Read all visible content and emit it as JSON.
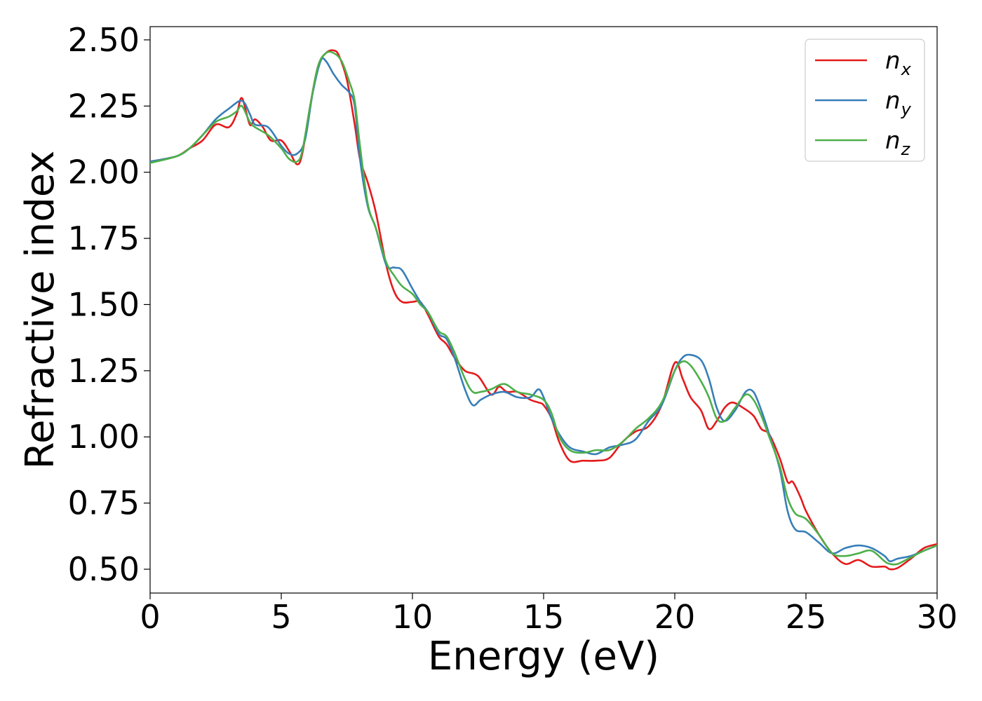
{
  "chart_data": {
    "type": "line",
    "title": "",
    "xlabel": "Energy (eV)",
    "ylabel": "Refractive index",
    "xlim": [
      0,
      30
    ],
    "ylim": [
      0.41,
      2.55
    ],
    "xticks": [
      0,
      5,
      10,
      15,
      20,
      25,
      30
    ],
    "xtick_labels": [
      "0",
      "5",
      "10",
      "15",
      "20",
      "25",
      "30"
    ],
    "yticks": [
      0.5,
      0.75,
      1.0,
      1.25,
      1.5,
      1.75,
      2.0,
      2.25,
      2.5
    ],
    "ytick_labels": [
      "0.50",
      "0.75",
      "1.00",
      "1.25",
      "1.50",
      "1.75",
      "2.00",
      "2.25",
      "2.50"
    ],
    "grid": false,
    "legend_position": "top-right",
    "series": [
      {
        "name": "n",
        "subscript": "x",
        "color": "#e41a1c",
        "x": [
          0,
          1,
          1.5,
          2,
          2.5,
          3,
          3.3,
          3.5,
          3.8,
          4,
          4.3,
          4.6,
          5,
          5.3,
          5.6,
          5.8,
          6.1,
          6.4,
          6.7,
          7,
          7.2,
          7.5,
          7.8,
          8,
          8.3,
          8.6,
          9,
          9.3,
          9.6,
          10,
          10.3,
          10.6,
          11,
          11.3,
          11.6,
          12,
          12.5,
          13,
          13.3,
          13.6,
          14,
          14.5,
          14.8,
          15,
          15.3,
          15.6,
          16,
          16.5,
          17,
          17.5,
          18,
          18.5,
          19,
          19.5,
          20,
          20.3,
          20.6,
          21,
          21.3,
          21.6,
          21.9,
          22.2,
          22.6,
          23,
          23.3,
          23.6,
          24,
          24.3,
          24.5,
          24.8,
          25,
          25.5,
          26,
          26.5,
          27,
          27.5,
          28,
          28.2,
          28.5,
          29,
          29.5,
          30
        ],
        "y": [
          2.04,
          2.06,
          2.09,
          2.12,
          2.18,
          2.17,
          2.22,
          2.28,
          2.18,
          2.2,
          2.17,
          2.12,
          2.12,
          2.08,
          2.03,
          2.07,
          2.25,
          2.4,
          2.45,
          2.46,
          2.44,
          2.35,
          2.18,
          2.05,
          1.96,
          1.85,
          1.65,
          1.55,
          1.51,
          1.51,
          1.51,
          1.46,
          1.38,
          1.35,
          1.3,
          1.25,
          1.23,
          1.16,
          1.19,
          1.17,
          1.17,
          1.14,
          1.13,
          1.12,
          1.07,
          0.98,
          0.91,
          0.91,
          0.91,
          0.92,
          0.98,
          1.02,
          1.04,
          1.12,
          1.28,
          1.22,
          1.15,
          1.1,
          1.03,
          1.06,
          1.11,
          1.13,
          1.11,
          1.08,
          1.03,
          1.01,
          0.92,
          0.83,
          0.83,
          0.77,
          0.72,
          0.63,
          0.56,
          0.52,
          0.535,
          0.51,
          0.51,
          0.5,
          0.505,
          0.54,
          0.58,
          0.595
        ]
      },
      {
        "name": "n",
        "subscript": "y",
        "color": "#377eb8",
        "x": [
          0,
          1,
          1.5,
          2,
          2.5,
          3,
          3.5,
          3.8,
          4,
          4.5,
          5,
          5.3,
          5.6,
          5.9,
          6.2,
          6.5,
          6.7,
          7,
          7.3,
          7.6,
          7.8,
          8,
          8.3,
          8.6,
          9,
          9.3,
          9.6,
          10,
          10.3,
          10.6,
          11,
          11.3,
          11.6,
          12,
          12.3,
          12.6,
          13,
          13.5,
          14,
          14.5,
          14.8,
          15,
          15.3,
          15.6,
          16,
          16.5,
          17,
          17.5,
          18,
          18.5,
          19,
          19.5,
          20,
          20.3,
          20.6,
          21,
          21.3,
          21.6,
          21.9,
          22.3,
          22.7,
          23,
          23.3,
          23.6,
          24,
          24.3,
          24.6,
          25,
          25.5,
          26,
          26.5,
          27,
          27.5,
          28,
          28.2,
          28.5,
          29,
          29.5,
          30
        ],
        "y": [
          2.04,
          2.06,
          2.09,
          2.14,
          2.2,
          2.24,
          2.27,
          2.22,
          2.18,
          2.17,
          2.1,
          2.07,
          2.07,
          2.12,
          2.3,
          2.42,
          2.42,
          2.37,
          2.33,
          2.3,
          2.25,
          2.05,
          1.87,
          1.79,
          1.65,
          1.64,
          1.63,
          1.56,
          1.51,
          1.47,
          1.39,
          1.37,
          1.3,
          1.18,
          1.12,
          1.14,
          1.16,
          1.17,
          1.15,
          1.15,
          1.18,
          1.15,
          1.07,
          1.01,
          0.96,
          0.945,
          0.935,
          0.96,
          0.97,
          0.99,
          1.06,
          1.12,
          1.25,
          1.3,
          1.31,
          1.29,
          1.22,
          1.11,
          1.06,
          1.1,
          1.17,
          1.17,
          1.1,
          1.01,
          0.88,
          0.72,
          0.65,
          0.64,
          0.6,
          0.56,
          0.58,
          0.59,
          0.58,
          0.55,
          0.53,
          0.54,
          0.55,
          0.57,
          0.59
        ]
      },
      {
        "name": "n",
        "subscript": "z",
        "color": "#4daf4a",
        "x": [
          0,
          1,
          1.5,
          2,
          2.5,
          3,
          3.3,
          3.5,
          3.8,
          4,
          4.5,
          5,
          5.3,
          5.6,
          5.8,
          6.1,
          6.4,
          6.7,
          7,
          7.3,
          7.6,
          7.8,
          8,
          8.3,
          8.6,
          9,
          9.3,
          9.6,
          10,
          10.3,
          10.6,
          11,
          11.3,
          11.6,
          12,
          12.3,
          12.6,
          13,
          13.5,
          14,
          14.5,
          15,
          15.3,
          15.6,
          16,
          16.5,
          17,
          17.5,
          18,
          18.5,
          19,
          19.5,
          20,
          20.3,
          20.6,
          21,
          21.3,
          21.6,
          21.9,
          22.3,
          22.7,
          23,
          23.3,
          23.6,
          24,
          24.3,
          24.6,
          25,
          25.5,
          26,
          26.5,
          27,
          27.5,
          28,
          28.2,
          28.5,
          29,
          29.5,
          30
        ],
        "y": [
          2.035,
          2.06,
          2.09,
          2.14,
          2.19,
          2.21,
          2.23,
          2.25,
          2.19,
          2.17,
          2.14,
          2.09,
          2.05,
          2.04,
          2.08,
          2.25,
          2.4,
          2.45,
          2.45,
          2.42,
          2.34,
          2.27,
          2.1,
          1.88,
          1.79,
          1.66,
          1.61,
          1.57,
          1.54,
          1.5,
          1.47,
          1.4,
          1.38,
          1.32,
          1.22,
          1.17,
          1.17,
          1.18,
          1.2,
          1.17,
          1.16,
          1.14,
          1.09,
          1.0,
          0.95,
          0.94,
          0.95,
          0.95,
          0.98,
          1.03,
          1.07,
          1.13,
          1.25,
          1.285,
          1.27,
          1.21,
          1.15,
          1.07,
          1.06,
          1.11,
          1.16,
          1.14,
          1.08,
          1.0,
          0.89,
          0.77,
          0.71,
          0.69,
          0.63,
          0.56,
          0.55,
          0.56,
          0.57,
          0.53,
          0.52,
          0.52,
          0.545,
          0.57,
          0.59
        ]
      }
    ]
  }
}
